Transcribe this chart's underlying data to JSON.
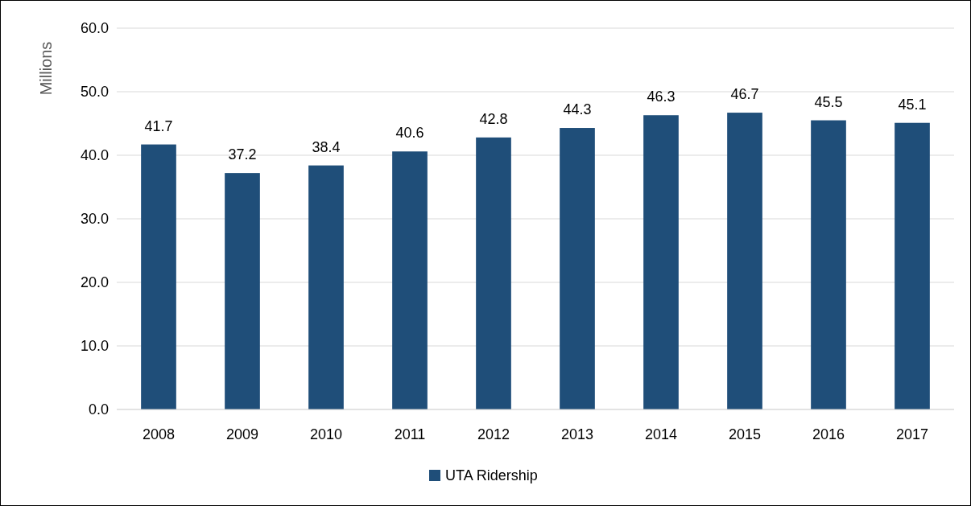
{
  "chart_data": {
    "type": "bar",
    "ylabel": "Millions",
    "categories": [
      "2008",
      "2009",
      "2010",
      "2011",
      "2012",
      "2013",
      "2014",
      "2015",
      "2016",
      "2017"
    ],
    "series": [
      {
        "name": "UTA Ridership",
        "color": "#1f4e79",
        "values": [
          41.7,
          37.2,
          38.4,
          40.6,
          42.8,
          44.3,
          46.3,
          46.7,
          45.5,
          45.1
        ]
      }
    ],
    "ylim": [
      0,
      60
    ],
    "yticks": [
      {
        "value": 0,
        "label": "0.0"
      },
      {
        "value": 10,
        "label": "10.0"
      },
      {
        "value": 20,
        "label": "20.0"
      },
      {
        "value": 30,
        "label": "30.0"
      },
      {
        "value": 40,
        "label": "40.0"
      },
      {
        "value": 50,
        "label": "50.0"
      },
      {
        "value": 60,
        "label": "60.0"
      }
    ],
    "grid": "y",
    "legend": "bottom",
    "data_labels": true
  }
}
